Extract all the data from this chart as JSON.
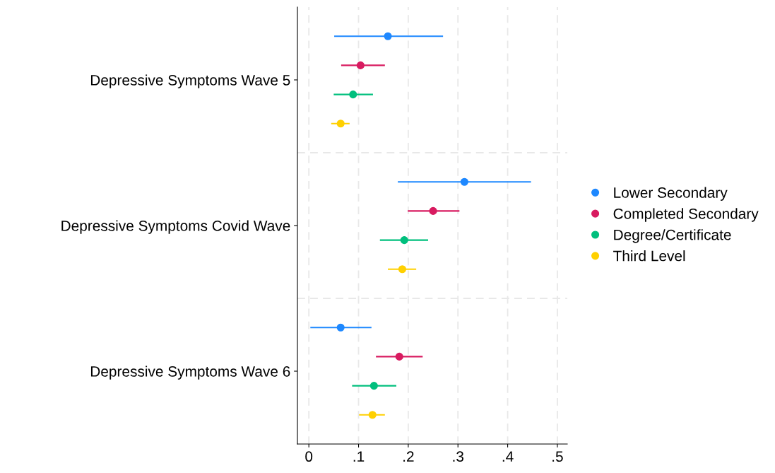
{
  "chart_data": {
    "type": "scatter",
    "orientation": "horizontal",
    "categories": [
      "Depressive Symptoms Wave 5",
      "Depressive Symptoms Covid Wave",
      "Depressive Symptoms Wave 6"
    ],
    "series": [
      {
        "name": "Lower Secondary",
        "color": "#1e88ff",
        "values": [
          0.159,
          0.313,
          0.064
        ],
        "errors": [
          [
            0.051,
            0.27
          ],
          [
            0.179,
            0.447
          ],
          [
            0.003,
            0.126
          ]
        ]
      },
      {
        "name": "Completed Secondary",
        "color": "#d81b60",
        "values": [
          0.104,
          0.25,
          0.182
        ],
        "errors": [
          [
            0.065,
            0.153
          ],
          [
            0.199,
            0.303
          ],
          [
            0.135,
            0.229
          ]
        ]
      },
      {
        "name": "Degree/Certificate",
        "color": "#00bf7d",
        "values": [
          0.089,
          0.192,
          0.131
        ],
        "errors": [
          [
            0.05,
            0.129
          ],
          [
            0.143,
            0.24
          ],
          [
            0.087,
            0.176
          ]
        ]
      },
      {
        "name": "Third Level",
        "color": "#ffd000",
        "values": [
          0.064,
          0.188,
          0.128
        ],
        "errors": [
          [
            0.045,
            0.082
          ],
          [
            0.159,
            0.216
          ],
          [
            0.101,
            0.153
          ]
        ]
      }
    ],
    "xlim": [
      -0.023,
      0.52
    ],
    "xticks": [
      0,
      {
        "value": 0.1,
        "label": ".1"
      },
      {
        "value": 0.2,
        "label": ".2"
      },
      {
        "value": 0.3,
        "label": ".3"
      },
      {
        "value": 0.4,
        "label": ".4"
      },
      {
        "value": 0.5,
        "label": ".5"
      }
    ],
    "grid": true,
    "legend": "right",
    "marker": "circle"
  }
}
